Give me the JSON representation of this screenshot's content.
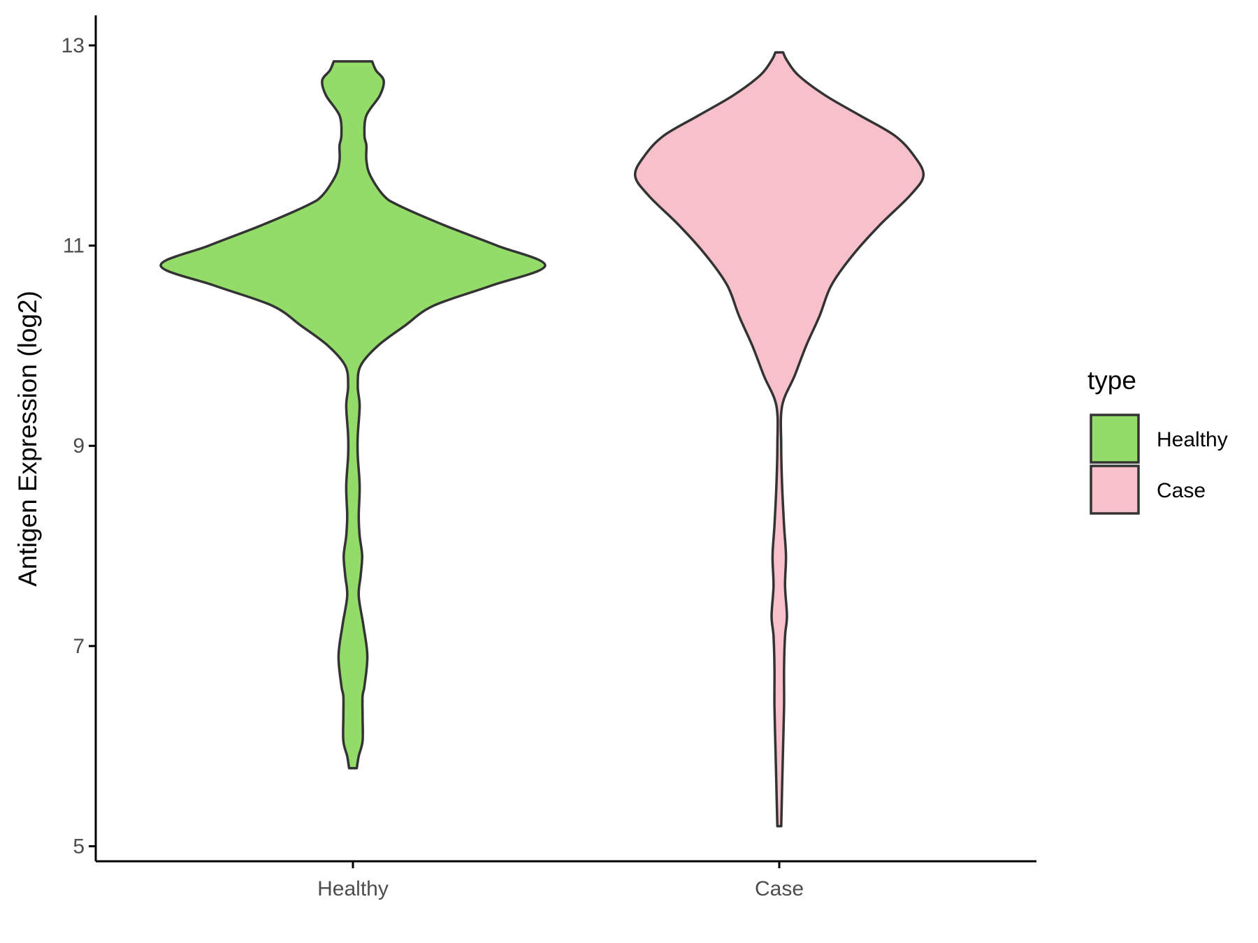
{
  "chart_data": {
    "type": "violin",
    "title": "",
    "xlabel": "",
    "ylabel": "Antigen Expression (log2)",
    "ylim": [
      4.85,
      13.3
    ],
    "yticks": [
      5,
      7,
      9,
      11,
      13
    ],
    "categories": [
      "Healthy",
      "Case"
    ],
    "grid": false,
    "legend": {
      "title": "type",
      "position": "right",
      "entries": [
        {
          "label": "Healthy",
          "color": "#93dc69"
        },
        {
          "label": "Case",
          "color": "#f7c0cb"
        }
      ]
    },
    "series": [
      {
        "name": "Healthy",
        "color": "#93dc69",
        "density_half_width": [
          [
            5.78,
            0.02
          ],
          [
            5.9,
            0.03
          ],
          [
            6.05,
            0.05
          ],
          [
            6.3,
            0.05
          ],
          [
            6.5,
            0.05
          ],
          [
            6.6,
            0.06
          ],
          [
            6.9,
            0.075
          ],
          [
            7.2,
            0.055
          ],
          [
            7.5,
            0.03
          ],
          [
            7.7,
            0.04
          ],
          [
            7.9,
            0.048
          ],
          [
            8.1,
            0.035
          ],
          [
            8.3,
            0.03
          ],
          [
            8.6,
            0.035
          ],
          [
            8.9,
            0.025
          ],
          [
            9.1,
            0.025
          ],
          [
            9.4,
            0.035
          ],
          [
            9.6,
            0.025
          ],
          [
            9.8,
            0.04
          ],
          [
            10.0,
            0.13
          ],
          [
            10.2,
            0.27
          ],
          [
            10.4,
            0.42
          ],
          [
            10.6,
            0.72
          ],
          [
            10.8,
            1.0
          ],
          [
            11.0,
            0.75
          ],
          [
            11.2,
            0.48
          ],
          [
            11.4,
            0.24
          ],
          [
            11.5,
            0.16
          ],
          [
            11.7,
            0.09
          ],
          [
            11.85,
            0.07
          ],
          [
            12.0,
            0.07
          ],
          [
            12.1,
            0.06
          ],
          [
            12.3,
            0.07
          ],
          [
            12.5,
            0.14
          ],
          [
            12.65,
            0.16
          ],
          [
            12.75,
            0.12
          ],
          [
            12.84,
            0.1
          ]
        ]
      },
      {
        "name": "Case",
        "color": "#f7c0cb",
        "density_half_width": [
          [
            5.2,
            0.01
          ],
          [
            5.6,
            0.015
          ],
          [
            6.0,
            0.02
          ],
          [
            6.4,
            0.025
          ],
          [
            6.8,
            0.025
          ],
          [
            7.1,
            0.03
          ],
          [
            7.3,
            0.04
          ],
          [
            7.6,
            0.03
          ],
          [
            7.9,
            0.035
          ],
          [
            8.2,
            0.025
          ],
          [
            8.6,
            0.015
          ],
          [
            9.0,
            0.01
          ],
          [
            9.4,
            0.015
          ],
          [
            9.7,
            0.08
          ],
          [
            10.0,
            0.14
          ],
          [
            10.3,
            0.21
          ],
          [
            10.6,
            0.27
          ],
          [
            10.9,
            0.38
          ],
          [
            11.2,
            0.52
          ],
          [
            11.5,
            0.68
          ],
          [
            11.7,
            0.75
          ],
          [
            11.9,
            0.7
          ],
          [
            12.1,
            0.6
          ],
          [
            12.3,
            0.42
          ],
          [
            12.5,
            0.24
          ],
          [
            12.7,
            0.1
          ],
          [
            12.85,
            0.04
          ],
          [
            12.93,
            0.02
          ]
        ]
      }
    ]
  }
}
